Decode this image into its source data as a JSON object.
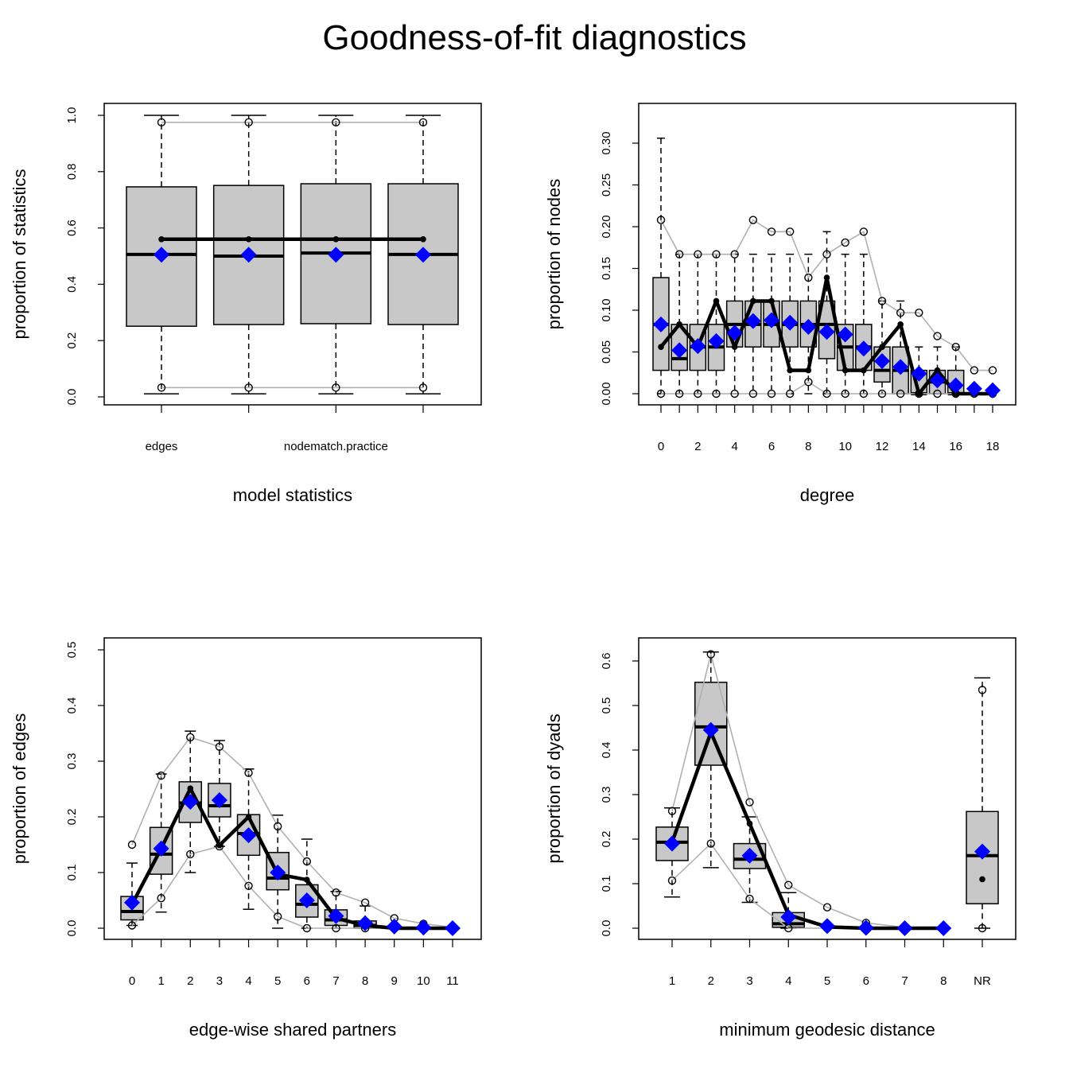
{
  "title": "Goodness-of-fit diagnostics",
  "colors": {
    "box_fill": "#c8c8c8",
    "sim_range": "#b0b0b0",
    "observed": "#000000",
    "mean": "#0000ff"
  },
  "chart_data": [
    {
      "type": "boxplot",
      "xlabel": "model statistics",
      "ylabel": "proportion of statistics",
      "ylim": [
        0,
        1
      ],
      "yticks": [
        "0.0",
        "0.2",
        "0.4",
        "0.6",
        "0.8",
        "1.0"
      ],
      "xtick_labels": [
        "edges",
        "",
        "nodematch.practice",
        ""
      ],
      "q1": [
        0.251,
        0.257,
        0.26,
        0.257
      ],
      "median": [
        0.506,
        0.5,
        0.511,
        0.506
      ],
      "q3": [
        0.746,
        0.751,
        0.757,
        0.757
      ],
      "whisker_low": [
        0.011,
        0.011,
        0.011,
        0.011
      ],
      "whisker_high": [
        1.0,
        1.0,
        1.0,
        1.0
      ],
      "observed": [
        0.56,
        0.56,
        0.56,
        0.56
      ],
      "mean": [
        0.505,
        0.505,
        0.505,
        0.505
      ],
      "sim_lower": [
        0.033,
        0.033,
        0.033,
        0.033
      ],
      "sim_upper": [
        0.975,
        0.975,
        0.975,
        0.975
      ],
      "observed_connect_last": true
    },
    {
      "type": "boxplot",
      "xlabel": "degree",
      "ylabel": "proportion of nodes",
      "ylim": [
        0,
        0.3
      ],
      "yticks": [
        "0.00",
        "0.05",
        "0.10",
        "0.15",
        "0.20",
        "0.25",
        "0.30"
      ],
      "xtick_labels": [
        "0",
        "",
        "2",
        "",
        "4",
        "",
        "6",
        "",
        "8",
        "",
        "10",
        "",
        "12",
        "",
        "14",
        "",
        "16",
        "",
        "18"
      ],
      "q1": [
        0.028,
        0.028,
        0.028,
        0.028,
        0.056,
        0.056,
        0.056,
        0.056,
        0.056,
        0.042,
        0.028,
        0.028,
        0.014,
        0,
        0,
        0,
        0,
        null,
        null
      ],
      "median": [
        0.083,
        0.042,
        0.056,
        0.056,
        0.083,
        0.083,
        0.083,
        0.083,
        0.083,
        0.083,
        0.056,
        0.056,
        0.028,
        0.028,
        0,
        0.014,
        0,
        null,
        null
      ],
      "q3": [
        0.139,
        0.083,
        0.083,
        0.083,
        0.111,
        0.111,
        0.111,
        0.111,
        0.111,
        0.111,
        0.083,
        0.083,
        0.056,
        0.056,
        0.028,
        0.028,
        0.028,
        null,
        null
      ],
      "whisker_low": [
        0,
        0,
        0,
        0,
        0,
        0,
        0,
        0,
        0,
        0,
        0,
        0,
        0,
        0,
        0,
        0,
        0,
        null,
        null
      ],
      "whisker_high": [
        0.306,
        0.167,
        0.167,
        0.167,
        0.167,
        0.167,
        0.167,
        0.167,
        0.167,
        0.194,
        0.167,
        0.167,
        0.111,
        0.111,
        0.056,
        0.056,
        0.056,
        null,
        null
      ],
      "observed": [
        0.056,
        0.083,
        0.056,
        0.111,
        0.056,
        0.111,
        0.111,
        0.028,
        0.028,
        0.139,
        0.028,
        0.028,
        0.056,
        0.083,
        0,
        0.028,
        0,
        0,
        0
      ],
      "mean": [
        0.083,
        0.052,
        0.057,
        0.063,
        0.073,
        0.087,
        0.088,
        0.085,
        0.08,
        0.074,
        0.071,
        0.054,
        0.039,
        0.032,
        0.024,
        0.016,
        0.01,
        0.006,
        0.004
      ],
      "sim_lower": [
        0,
        0,
        0,
        0,
        0,
        0,
        0,
        0,
        0.014,
        0,
        0,
        0,
        0,
        0,
        0,
        0,
        0,
        0,
        0
      ],
      "sim_upper": [
        0.208,
        0.167,
        0.167,
        0.167,
        0.167,
        0.208,
        0.194,
        0.194,
        0.139,
        0.167,
        0.181,
        0.194,
        0.111,
        0.097,
        0.097,
        0.069,
        0.056,
        0.028,
        0.028
      ],
      "observed_connect_last": true
    },
    {
      "type": "boxplot",
      "xlabel": "edge-wise shared partners",
      "ylabel": "proportion of edges",
      "ylim": [
        0,
        0.5
      ],
      "yticks": [
        "0.0",
        "0.1",
        "0.2",
        "0.3",
        "0.4",
        "0.5"
      ],
      "xtick_labels": [
        "0",
        "1",
        "2",
        "3",
        "4",
        "5",
        "6",
        "7",
        "8",
        "9",
        "10",
        "11"
      ],
      "q1": [
        0.015,
        0.097,
        0.19,
        0.2,
        0.131,
        0.069,
        0.02,
        0.005,
        0,
        null,
        null,
        null
      ],
      "median": [
        0.03,
        0.133,
        0.225,
        0.22,
        0.17,
        0.09,
        0.043,
        0.015,
        0.005,
        null,
        null,
        null
      ],
      "q3": [
        0.057,
        0.181,
        0.263,
        0.26,
        0.204,
        0.136,
        0.078,
        0.033,
        0.013,
        null,
        null,
        null
      ],
      "whisker_low": [
        0.005,
        0.029,
        0.1,
        0.147,
        0.034,
        0,
        0,
        0,
        0,
        null,
        null,
        null
      ],
      "whisker_high": [
        0.117,
        0.277,
        0.354,
        0.337,
        0.286,
        0.203,
        0.16,
        0.066,
        0.04,
        null,
        null,
        null
      ],
      "observed": [
        0.043,
        0.143,
        0.251,
        0.149,
        0.2,
        0.097,
        0.087,
        0.018,
        0.005,
        0,
        0,
        0
      ],
      "mean": [
        0.046,
        0.143,
        0.227,
        0.23,
        0.167,
        0.1,
        0.05,
        0.022,
        0.009,
        0.003,
        0.001,
        0.0
      ],
      "sim_lower": [
        0.005,
        0.054,
        0.133,
        0.147,
        0.076,
        0.021,
        0,
        0,
        0,
        0,
        0,
        0
      ],
      "sim_upper": [
        0.15,
        0.274,
        0.343,
        0.326,
        0.279,
        0.183,
        0.12,
        0.064,
        0.046,
        0.018,
        0.008,
        0.002
      ],
      "observed_connect_last": true
    },
    {
      "type": "boxplot",
      "xlabel": "minimum geodesic distance",
      "ylabel": "proportion of dyads",
      "ylim": [
        0,
        0.6
      ],
      "yticks": [
        "0.0",
        "0.1",
        "0.2",
        "0.3",
        "0.4",
        "0.5",
        "0.6"
      ],
      "xtick_labels": [
        "1",
        "2",
        "3",
        "4",
        "5",
        "6",
        "7",
        "8",
        "NR"
      ],
      "q1": [
        0.152,
        0.366,
        0.134,
        0.002,
        null,
        null,
        null,
        null,
        0.055
      ],
      "median": [
        0.193,
        0.452,
        0.155,
        0.01,
        null,
        null,
        null,
        null,
        0.163
      ],
      "q3": [
        0.227,
        0.552,
        0.19,
        0.035,
        null,
        null,
        null,
        null,
        0.262
      ],
      "whisker_low": [
        0.07,
        0.136,
        0.058,
        0,
        null,
        null,
        null,
        null,
        0
      ],
      "whisker_high": [
        0.27,
        0.62,
        0.25,
        0.08,
        null,
        null,
        null,
        null,
        0.562
      ],
      "observed": [
        0.193,
        0.44,
        0.235,
        0.03,
        0.003,
        0,
        0,
        0,
        0.11
      ],
      "mean": [
        0.19,
        0.445,
        0.163,
        0.025,
        0.005,
        0.001,
        0,
        0,
        0.172
      ],
      "sim_lower": [
        0.107,
        0.19,
        0.066,
        0,
        0,
        0,
        0,
        0,
        0
      ],
      "sim_upper": [
        0.263,
        0.615,
        0.283,
        0.097,
        0.047,
        0.012,
        0.002,
        0.001,
        0.535
      ],
      "observed_connect_last": false
    }
  ]
}
